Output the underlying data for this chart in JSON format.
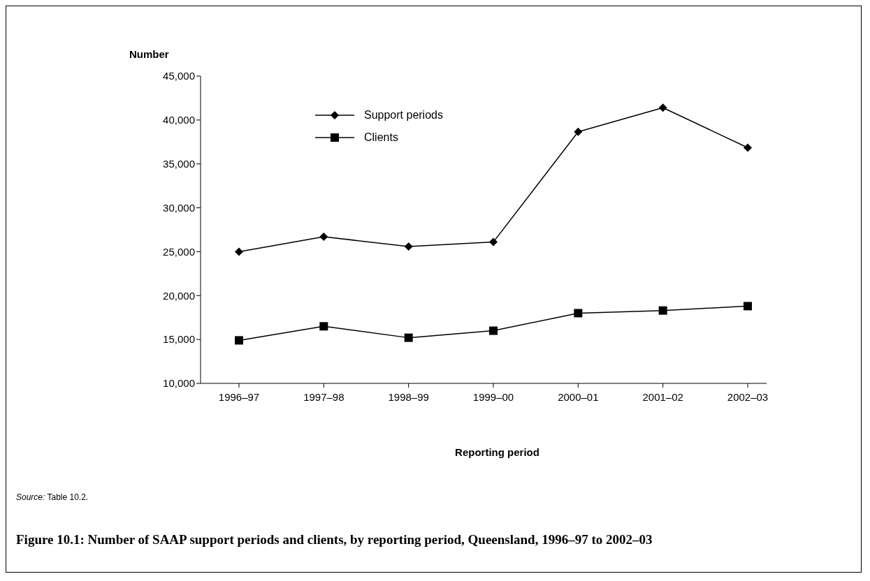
{
  "chart_data": {
    "type": "line",
    "title": "Figure 10.1: Number of SAAP support periods and clients, by reporting period, Queensland, 1996–97 to 2002–03",
    "xlabel": "Reporting period",
    "ylabel": "Number",
    "categories": [
      "1996–97",
      "1997–98",
      "1998–99",
      "1999–00",
      "2000–01",
      "2001–02",
      "2002–03"
    ],
    "series": [
      {
        "name": "Support periods",
        "color": "#000000",
        "marker": "diamond",
        "values": [
          25000,
          26700,
          25600,
          26100,
          38650,
          41400,
          36850
        ]
      },
      {
        "name": "Clients",
        "color": "#000000",
        "marker": "square",
        "values": [
          14900,
          16500,
          15200,
          16000,
          18000,
          18300,
          18800
        ]
      }
    ],
    "ylim": [
      10000,
      45000
    ],
    "yticks": [
      {
        "value": 10000,
        "label": "10,000"
      },
      {
        "value": 15000,
        "label": "15,000"
      },
      {
        "value": 20000,
        "label": "20,000"
      },
      {
        "value": 25000,
        "label": "25,000"
      },
      {
        "value": 30000,
        "label": "30,000"
      },
      {
        "value": 35000,
        "label": "35,000"
      },
      {
        "value": 40000,
        "label": "40,000"
      },
      {
        "value": 45000,
        "label": "45,000"
      }
    ],
    "grid": false,
    "legend": "top left",
    "line_style": "solid",
    "annotations": [
      "Source: Table 10.2."
    ]
  }
}
